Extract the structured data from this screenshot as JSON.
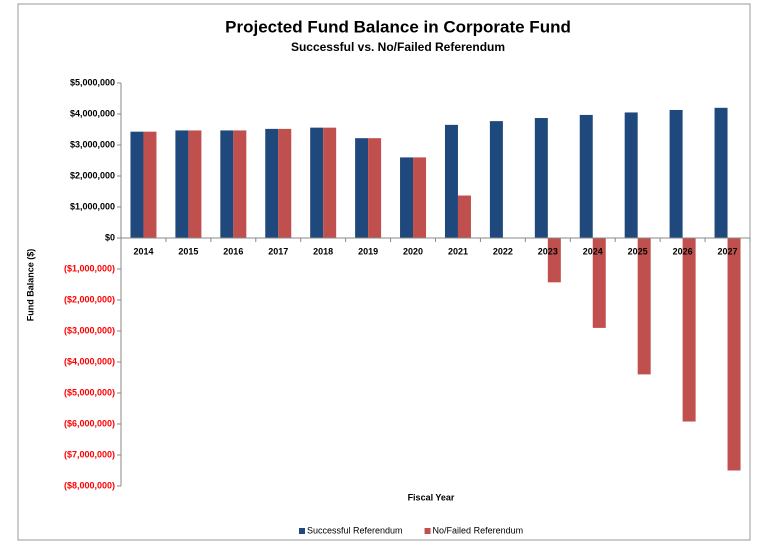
{
  "chart_data": {
    "type": "bar",
    "title": "Projected Fund Balance in Corporate Fund",
    "subtitle": "Successful vs. No/Failed Referendum",
    "x_label": "Fiscal Year",
    "y_label": "Fund Balance ($)",
    "categories": [
      "2014",
      "2015",
      "2016",
      "2017",
      "2018",
      "2019",
      "2020",
      "2021",
      "2022",
      "2023",
      "2024",
      "2025",
      "2026",
      "2027"
    ],
    "series": [
      {
        "name": "Successful Referendum",
        "color": "#1f497d",
        "values": [
          3430000,
          3470000,
          3470000,
          3520000,
          3560000,
          3220000,
          2600000,
          3650000,
          3770000,
          3870000,
          3970000,
          4050000,
          4130000,
          4200000
        ]
      },
      {
        "name": "No/Failed Referendum",
        "color": "#c0504d",
        "values": [
          3430000,
          3470000,
          3470000,
          3520000,
          3560000,
          3220000,
          2600000,
          1370000,
          0,
          -1430000,
          -2900000,
          -4400000,
          -5920000,
          -7500000
        ]
      }
    ],
    "ylim": [
      -8000000,
      5000000
    ],
    "yticks": [
      {
        "value": 5000000,
        "label": "$5,000,000"
      },
      {
        "value": 4000000,
        "label": "$4,000,000"
      },
      {
        "value": 3000000,
        "label": "$3,000,000"
      },
      {
        "value": 2000000,
        "label": "$2,000,000"
      },
      {
        "value": 1000000,
        "label": "$1,000,000"
      },
      {
        "value": 0,
        "label": "$0"
      },
      {
        "value": -1000000,
        "label": "($1,000,000)"
      },
      {
        "value": -2000000,
        "label": "($2,000,000)"
      },
      {
        "value": -3000000,
        "label": "($3,000,000)"
      },
      {
        "value": -4000000,
        "label": "($4,000,000)"
      },
      {
        "value": -5000000,
        "label": "($5,000,000)"
      },
      {
        "value": -6000000,
        "label": "($6,000,000)"
      },
      {
        "value": -7000000,
        "label": "($7,000,000)"
      },
      {
        "value": -8000000,
        "label": "($8,000,000)"
      }
    ],
    "negative_tick_color": "#ff0000",
    "legend": "bottom"
  }
}
